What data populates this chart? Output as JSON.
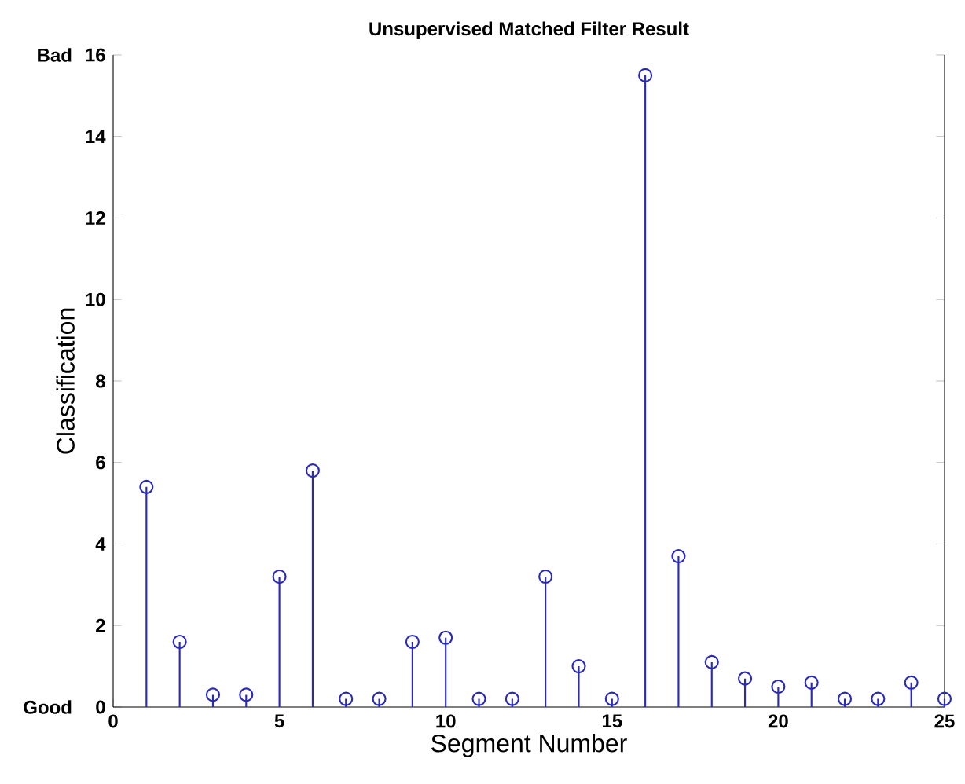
{
  "chart_data": {
    "type": "lollipop",
    "title": "Unsupervised Matched Filter Result",
    "xlabel": "Segment Number",
    "ylabel": "Classification",
    "x": [
      1,
      2,
      3,
      4,
      5,
      6,
      7,
      8,
      9,
      10,
      11,
      12,
      13,
      14,
      15,
      16,
      17,
      18,
      19,
      20,
      21,
      22,
      23,
      24,
      25
    ],
    "values": [
      5.4,
      1.6,
      0.3,
      0.3,
      3.2,
      5.8,
      0.2,
      0.2,
      1.6,
      1.7,
      0.2,
      0.2,
      3.2,
      1.0,
      0.2,
      15.5,
      3.7,
      1.1,
      0.7,
      0.5,
      0.6,
      0.2,
      0.2,
      0.6,
      0.2
    ],
    "color": "#2a2ab8",
    "marker": "circle",
    "grid": false,
    "xlim": [
      0,
      25
    ],
    "xticks": [
      0,
      5,
      10,
      15,
      20,
      25
    ],
    "ylim": [
      0,
      16
    ],
    "yticks": [
      0,
      2,
      4,
      6,
      8,
      10,
      12,
      14,
      16
    ],
    "annotations": [
      "Good",
      "Bad"
    ]
  }
}
